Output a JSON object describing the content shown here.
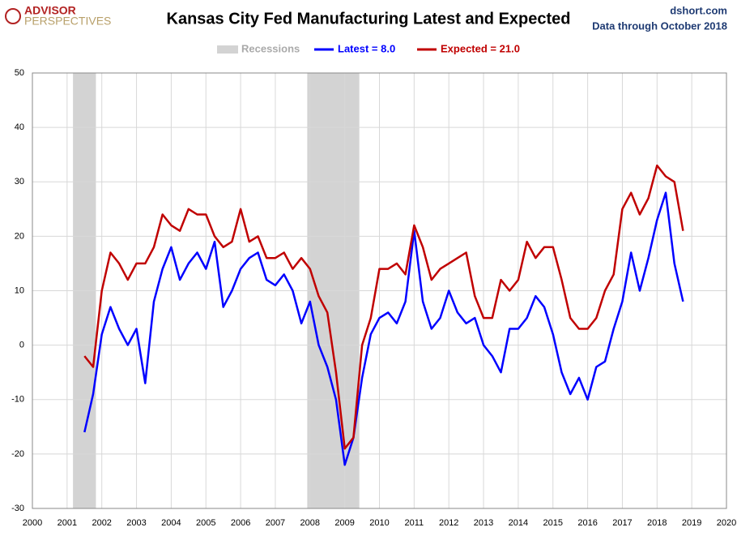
{
  "chart_data": {
    "type": "line",
    "title": "Kansas City Fed Manufacturing Latest and Expected",
    "source": "dshort.com",
    "subtitle": "Data through October 2018",
    "logo": {
      "top": "ADVISOR",
      "bottom": "PERSPECTIVES"
    },
    "recessions": {
      "name": "Recessions",
      "color": "#d3d3d3",
      "periods": [
        {
          "start": 2001.17,
          "end": 2001.83
        },
        {
          "start": 2007.92,
          "end": 2009.42
        }
      ]
    },
    "x": [
      2001.5,
      2001.75,
      2002,
      2002.25,
      2002.5,
      2002.75,
      2003,
      2003.25,
      2003.5,
      2003.75,
      2004,
      2004.25,
      2004.5,
      2004.75,
      2005,
      2005.25,
      2005.5,
      2005.75,
      2006,
      2006.25,
      2006.5,
      2006.75,
      2007,
      2007.25,
      2007.5,
      2007.75,
      2008,
      2008.25,
      2008.5,
      2008.75,
      2009,
      2009.25,
      2009.5,
      2009.75,
      2010,
      2010.25,
      2010.5,
      2010.75,
      2011,
      2011.25,
      2011.5,
      2011.75,
      2012,
      2012.25,
      2012.5,
      2012.75,
      2013,
      2013.25,
      2013.5,
      2013.75,
      2014,
      2014.25,
      2014.5,
      2014.75,
      2015,
      2015.25,
      2015.5,
      2015.75,
      2016,
      2016.25,
      2016.5,
      2016.75,
      2017,
      2017.25,
      2017.5,
      2017.75,
      2018,
      2018.25,
      2018.5,
      2018.75
    ],
    "series": [
      {
        "name": "Latest = 8.0",
        "color": "#0000ff",
        "values": [
          -16,
          -9,
          2,
          7,
          3,
          0,
          3,
          -7,
          8,
          14,
          18,
          12,
          15,
          17,
          14,
          19,
          7,
          10,
          14,
          16,
          17,
          12,
          11,
          13,
          10,
          4,
          8,
          0,
          -4,
          -10,
          -22,
          -17,
          -6,
          2,
          5,
          6,
          4,
          8,
          21,
          8,
          3,
          5,
          10,
          6,
          4,
          5,
          0,
          -2,
          -5,
          3,
          3,
          5,
          9,
          7,
          2,
          -5,
          -9,
          -6,
          -10,
          -4,
          -3,
          3,
          8,
          17,
          10,
          16,
          23,
          28,
          15,
          8
        ]
      },
      {
        "name": "Expected = 21.0",
        "color": "#c00000",
        "values": [
          -2,
          -4,
          10,
          17,
          15,
          12,
          15,
          15,
          18,
          24,
          22,
          21,
          25,
          24,
          24,
          20,
          18,
          19,
          25,
          19,
          20,
          16,
          16,
          17,
          14,
          16,
          14,
          9,
          6,
          -5,
          -19,
          -17,
          0,
          5,
          14,
          14,
          15,
          13,
          22,
          18,
          12,
          14,
          15,
          16,
          17,
          9,
          5,
          5,
          12,
          10,
          12,
          19,
          16,
          18,
          18,
          12,
          5,
          3,
          3,
          5,
          10,
          13,
          25,
          28,
          24,
          27,
          33,
          31,
          30,
          21
        ]
      }
    ],
    "xlim": [
      2000,
      2020
    ],
    "xticks": [
      2000,
      2001,
      2002,
      2003,
      2004,
      2005,
      2006,
      2007,
      2008,
      2009,
      2010,
      2011,
      2012,
      2013,
      2014,
      2015,
      2016,
      2017,
      2018,
      2019,
      2020
    ],
    "ylim": [
      -30,
      50
    ],
    "yticks": [
      -30,
      -20,
      -10,
      0,
      10,
      20,
      30,
      40,
      50
    ],
    "grid": true
  }
}
